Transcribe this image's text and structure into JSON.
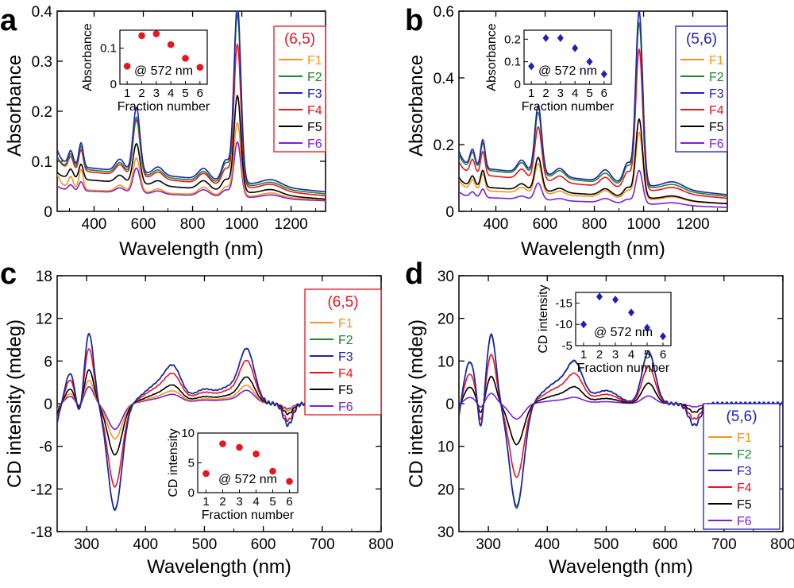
{
  "chart_data": [
    {
      "panel": "a",
      "type": "line",
      "xlabel": "Wavelength (nm)",
      "ylabel": "Absorbance",
      "xlim": [
        250,
        1340
      ],
      "ylim": [
        0,
        0.4
      ],
      "xticks": [
        400,
        600,
        800,
        1000,
        1200
      ],
      "yticks": [
        0,
        0.1,
        0.2,
        0.3,
        0.4
      ],
      "ytick_labels": [
        "0",
        "0.1",
        "0.2",
        "0.3",
        "0.4"
      ],
      "legend": {
        "title": "(6,5)",
        "title_color": "#e8141e",
        "border_color": "#e8141e",
        "position": "top-right"
      },
      "series": [
        {
          "name": "F1",
          "color": "#f7941d",
          "peaks": {
            "baseline": 0.042,
            "slope": 2e-05,
            "uv": 0.03,
            "p350": 0.04,
            "p572": 0.068,
            "p850": 0.015,
            "p980": 0.146
          }
        },
        {
          "name": "F2",
          "color": "#1a8a2e",
          "peaks": {
            "baseline": 0.082,
            "slope": 5e-05,
            "uv": 0.02,
            "p350": 0.045,
            "p572": 0.115,
            "p850": 0.02,
            "p980": 0.34
          }
        },
        {
          "name": "F3",
          "color": "#1f1fb4",
          "peaks": {
            "baseline": 0.086,
            "slope": 5e-05,
            "uv": 0.03,
            "p350": 0.048,
            "p572": 0.13,
            "p850": 0.022,
            "p980": 0.355
          }
        },
        {
          "name": "F4",
          "color": "#e8141e",
          "peaks": {
            "baseline": 0.078,
            "slope": 5e-05,
            "uv": 0.025,
            "p350": 0.042,
            "p572": 0.113,
            "p850": 0.02,
            "p980": 0.284
          }
        },
        {
          "name": "F5",
          "color": "#000000",
          "peaks": {
            "baseline": 0.062,
            "slope": 4e-05,
            "uv": 0.01,
            "p350": 0.03,
            "p572": 0.08,
            "p850": 0.017,
            "p980": 0.192
          }
        },
        {
          "name": "F6",
          "color": "#7a1fd8",
          "peaks": {
            "baseline": 0.04,
            "slope": 2e-05,
            "uv": 0.008,
            "p350": 0.018,
            "p572": 0.05,
            "p850": 0.012,
            "p980": 0.11
          }
        }
      ],
      "inset": {
        "xlabel": "Fraction number",
        "ylabel": "Absorbance",
        "annotation": "@ 572 nm",
        "x": [
          1,
          2,
          3,
          4,
          5,
          6
        ],
        "y": [
          0.05,
          0.135,
          0.14,
          0.11,
          0.072,
          0.047
        ],
        "xlim": [
          0.5,
          6.5
        ],
        "ylim": [
          0,
          0.15
        ],
        "yticks": [
          0,
          0.1
        ],
        "marker": "circle",
        "color": "#e8141e"
      }
    },
    {
      "panel": "b",
      "type": "line",
      "xlabel": "Wavelength (nm)",
      "ylabel": "Absorbance",
      "xlim": [
        250,
        1340
      ],
      "ylim": [
        0,
        0.6
      ],
      "xticks": [
        400,
        600,
        800,
        1000,
        1200
      ],
      "yticks": [
        0,
        0.2,
        0.4,
        0.6
      ],
      "ytick_labels": [
        "0",
        "0.2",
        "0.4",
        "0.6"
      ],
      "legend": {
        "title": "(5,6)",
        "title_color": "#1f1fb4",
        "border_color": "#1f1fb4",
        "position": "top-right"
      },
      "series": [
        {
          "name": "F1",
          "color": "#f7941d",
          "peaks": {
            "baseline": 0.06,
            "slope": 4e-05,
            "uv": 0.03,
            "p350": 0.05,
            "p572": 0.09,
            "p850": 0.02,
            "p980": 0.2
          }
        },
        {
          "name": "F2",
          "color": "#1a8a2e",
          "peaks": {
            "baseline": 0.12,
            "slope": 8e-05,
            "uv": 0.04,
            "p350": 0.08,
            "p572": 0.19,
            "p850": 0.03,
            "p980": 0.49
          }
        },
        {
          "name": "F3",
          "color": "#1f1fb4",
          "peaks": {
            "baseline": 0.125,
            "slope": 8e-05,
            "uv": 0.045,
            "p350": 0.085,
            "p572": 0.205,
            "p850": 0.035,
            "p980": 0.52
          }
        },
        {
          "name": "F4",
          "color": "#e8141e",
          "peaks": {
            "baseline": 0.105,
            "slope": 7e-05,
            "uv": 0.035,
            "p350": 0.07,
            "p572": 0.16,
            "p850": 0.028,
            "p980": 0.42
          }
        },
        {
          "name": "F5",
          "color": "#000000",
          "peaks": {
            "baseline": 0.07,
            "slope": 5e-05,
            "uv": 0.025,
            "p350": 0.05,
            "p572": 0.1,
            "p850": 0.02,
            "p980": 0.235
          }
        },
        {
          "name": "F6",
          "color": "#7a1fd8",
          "peaks": {
            "baseline": 0.04,
            "slope": 3e-05,
            "uv": 0.015,
            "p350": 0.025,
            "p572": 0.05,
            "p850": 0.012,
            "p980": 0.1
          }
        }
      ],
      "inset": {
        "xlabel": "Fraction number",
        "ylabel": "Absorbance",
        "annotation": "@ 572 nm",
        "x": [
          1,
          2,
          3,
          4,
          5,
          6
        ],
        "y": [
          0.08,
          0.205,
          0.205,
          0.16,
          0.1,
          0.045
        ],
        "xlim": [
          0.5,
          6.5
        ],
        "ylim": [
          0,
          0.24
        ],
        "yticks": [
          0,
          0.1,
          0.2
        ],
        "marker": "diamond",
        "color": "#1f1fb4"
      }
    },
    {
      "panel": "c",
      "type": "line",
      "xlabel": "Wavelength (nm)",
      "ylabel": "CD intensity (mdeg)",
      "xlim": [
        250,
        800
      ],
      "ylim": [
        -18,
        18
      ],
      "xticks": [
        300,
        400,
        500,
        600,
        700,
        800
      ],
      "yticks": [
        -18,
        -12,
        -6,
        0,
        6,
        12,
        18
      ],
      "ytick_labels": [
        "-18",
        "-12",
        "-6",
        "0",
        "6",
        "12",
        "18"
      ],
      "legend": {
        "title": "(6,5)",
        "title_color": "#e8141e",
        "border_color": "#e8141e",
        "position": "top-right"
      },
      "series": [
        {
          "name": "F1",
          "color": "#f7941d",
          "scale": 0.33
        },
        {
          "name": "F2",
          "color": "#1a8a2e",
          "scale": 1.0
        },
        {
          "name": "F3",
          "color": "#1f1fb4",
          "scale": 0.99
        },
        {
          "name": "F4",
          "color": "#e8141e",
          "scale": 0.78
        },
        {
          "name": "F5",
          "color": "#000000",
          "scale": 0.48
        },
        {
          "name": "F6",
          "color": "#7a1fd8",
          "scale": 0.24
        }
      ],
      "inset": {
        "xlabel": "Fraction number",
        "ylabel": "CD intensity",
        "annotation": "@ 572 nm",
        "x": [
          1,
          2,
          3,
          4,
          5,
          6
        ],
        "y": [
          3.2,
          8.2,
          7.6,
          6.5,
          3.6,
          1.9
        ],
        "xlim": [
          0.5,
          6.5
        ],
        "ylim": [
          0,
          10
        ],
        "yticks": [
          0,
          5,
          10
        ],
        "marker": "circle",
        "color": "#e8141e"
      }
    },
    {
      "panel": "d",
      "type": "line",
      "xlabel": "Wavelength (nm)",
      "ylabel": "CD intensity (mdeg)",
      "xlim": [
        250,
        800
      ],
      "ylim": [
        -30,
        30
      ],
      "y_axis_label_magnitudes": true,
      "xticks": [
        300,
        400,
        500,
        600,
        700,
        800
      ],
      "yticks": [
        -30,
        -20,
        -10,
        0,
        10,
        20,
        30
      ],
      "ytick_labels": [
        "30",
        "20",
        "10",
        "0",
        "10",
        "20",
        "30"
      ],
      "legend": {
        "title": "(5,6)",
        "title_color": "#1f1fb4",
        "border_color": "#1f1fb4",
        "position": "bottom-right"
      },
      "series": [
        {
          "name": "F1",
          "color": "#f7941d",
          "scale": 0.4
        },
        {
          "name": "F2",
          "color": "#1a8a2e",
          "scale": 1.0
        },
        {
          "name": "F3",
          "color": "#1f1fb4",
          "scale": 1.02
        },
        {
          "name": "F4",
          "color": "#e8141e",
          "scale": 0.72
        },
        {
          "name": "F5",
          "color": "#000000",
          "scale": 0.4
        },
        {
          "name": "F6",
          "color": "#7a1fd8",
          "scale": 0.15
        }
      ],
      "inset": {
        "xlabel": "Fraction number",
        "ylabel": "CD intensity",
        "annotation": "@ 572 nm",
        "x": [
          1,
          2,
          3,
          4,
          5,
          6
        ],
        "y": [
          -10,
          -16.5,
          -15.8,
          -12.8,
          -9.2,
          -7.2
        ],
        "xlim": [
          0.5,
          6.5
        ],
        "ylim": [
          -5,
          -17.5
        ],
        "yticks": [
          -15,
          -10,
          -5
        ],
        "marker": "diamond",
        "color": "#1f1fb4"
      }
    }
  ]
}
